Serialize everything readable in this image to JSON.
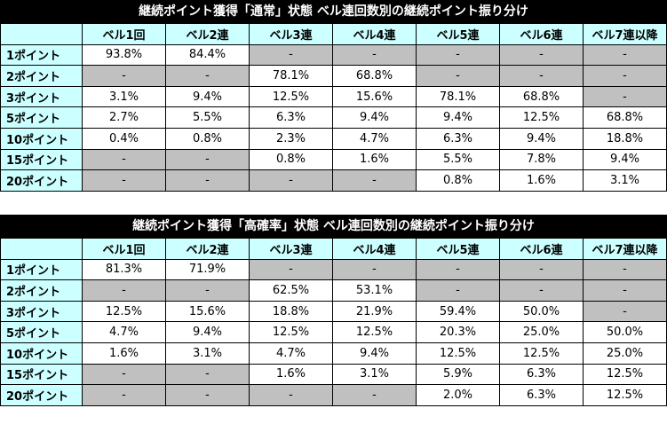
{
  "columns": [
    "ベル1回",
    "ベル2連",
    "ベル3連",
    "ベル4連",
    "ベル5連",
    "ベル6連",
    "ベル7連以降"
  ],
  "tables": [
    {
      "title": "継続ポイント獲得「通常」状態 ベル連回数別の継続ポイント振り分け",
      "rows": [
        {
          "label": "1ポイント",
          "cells": [
            {
              "v": "93.8%",
              "g": false
            },
            {
              "v": "84.4%",
              "g": false
            },
            {
              "v": "-",
              "g": true
            },
            {
              "v": "-",
              "g": true
            },
            {
              "v": "-",
              "g": true
            },
            {
              "v": "-",
              "g": true
            },
            {
              "v": "-",
              "g": true
            }
          ]
        },
        {
          "label": "2ポイント",
          "cells": [
            {
              "v": "-",
              "g": true
            },
            {
              "v": "-",
              "g": true
            },
            {
              "v": "78.1%",
              "g": false
            },
            {
              "v": "68.8%",
              "g": false
            },
            {
              "v": "-",
              "g": true
            },
            {
              "v": "-",
              "g": true
            },
            {
              "v": "-",
              "g": true
            }
          ]
        },
        {
          "label": "3ポイント",
          "cells": [
            {
              "v": "3.1%",
              "g": false
            },
            {
              "v": "9.4%",
              "g": false
            },
            {
              "v": "12.5%",
              "g": false
            },
            {
              "v": "15.6%",
              "g": false
            },
            {
              "v": "78.1%",
              "g": false
            },
            {
              "v": "68.8%",
              "g": false
            },
            {
              "v": "-",
              "g": true
            }
          ]
        },
        {
          "label": "5ポイント",
          "cells": [
            {
              "v": "2.7%",
              "g": false
            },
            {
              "v": "5.5%",
              "g": false
            },
            {
              "v": "6.3%",
              "g": false
            },
            {
              "v": "9.4%",
              "g": false
            },
            {
              "v": "9.4%",
              "g": false
            },
            {
              "v": "12.5%",
              "g": false
            },
            {
              "v": "68.8%",
              "g": false
            }
          ]
        },
        {
          "label": "10ポイント",
          "cells": [
            {
              "v": "0.4%",
              "g": false
            },
            {
              "v": "0.8%",
              "g": false
            },
            {
              "v": "2.3%",
              "g": false
            },
            {
              "v": "4.7%",
              "g": false
            },
            {
              "v": "6.3%",
              "g": false
            },
            {
              "v": "9.4%",
              "g": false
            },
            {
              "v": "18.8%",
              "g": false
            }
          ]
        },
        {
          "label": "15ポイント",
          "cells": [
            {
              "v": "-",
              "g": true
            },
            {
              "v": "-",
              "g": true
            },
            {
              "v": "0.8%",
              "g": false
            },
            {
              "v": "1.6%",
              "g": false
            },
            {
              "v": "5.5%",
              "g": false
            },
            {
              "v": "7.8%",
              "g": false
            },
            {
              "v": "9.4%",
              "g": false
            }
          ]
        },
        {
          "label": "20ポイント",
          "cells": [
            {
              "v": "-",
              "g": true
            },
            {
              "v": "-",
              "g": true
            },
            {
              "v": "-",
              "g": true
            },
            {
              "v": "-",
              "g": true
            },
            {
              "v": "0.8%",
              "g": false
            },
            {
              "v": "1.6%",
              "g": false
            },
            {
              "v": "3.1%",
              "g": false
            }
          ]
        }
      ]
    },
    {
      "title": "継続ポイント獲得「高確率」状態 ベル連回数別の継続ポイント振り分け",
      "rows": [
        {
          "label": "1ポイント",
          "cells": [
            {
              "v": "81.3%",
              "g": false
            },
            {
              "v": "71.9%",
              "g": false
            },
            {
              "v": "-",
              "g": true
            },
            {
              "v": "-",
              "g": true
            },
            {
              "v": "-",
              "g": true
            },
            {
              "v": "-",
              "g": true
            },
            {
              "v": "-",
              "g": true
            }
          ]
        },
        {
          "label": "2ポイント",
          "cells": [
            {
              "v": "-",
              "g": true
            },
            {
              "v": "-",
              "g": true
            },
            {
              "v": "62.5%",
              "g": false
            },
            {
              "v": "53.1%",
              "g": false
            },
            {
              "v": "-",
              "g": true
            },
            {
              "v": "-",
              "g": true
            },
            {
              "v": "-",
              "g": true
            }
          ]
        },
        {
          "label": "3ポイント",
          "cells": [
            {
              "v": "12.5%",
              "g": false
            },
            {
              "v": "15.6%",
              "g": false
            },
            {
              "v": "18.8%",
              "g": false
            },
            {
              "v": "21.9%",
              "g": false
            },
            {
              "v": "59.4%",
              "g": false
            },
            {
              "v": "50.0%",
              "g": false
            },
            {
              "v": "-",
              "g": true
            }
          ]
        },
        {
          "label": "5ポイント",
          "cells": [
            {
              "v": "4.7%",
              "g": false
            },
            {
              "v": "9.4%",
              "g": false
            },
            {
              "v": "12.5%",
              "g": false
            },
            {
              "v": "12.5%",
              "g": false
            },
            {
              "v": "20.3%",
              "g": false
            },
            {
              "v": "25.0%",
              "g": false
            },
            {
              "v": "50.0%",
              "g": false
            }
          ]
        },
        {
          "label": "10ポイント",
          "cells": [
            {
              "v": "1.6%",
              "g": false
            },
            {
              "v": "3.1%",
              "g": false
            },
            {
              "v": "4.7%",
              "g": false
            },
            {
              "v": "9.4%",
              "g": false
            },
            {
              "v": "12.5%",
              "g": false
            },
            {
              "v": "12.5%",
              "g": false
            },
            {
              "v": "25.0%",
              "g": false
            }
          ]
        },
        {
          "label": "15ポイント",
          "cells": [
            {
              "v": "-",
              "g": true
            },
            {
              "v": "-",
              "g": true
            },
            {
              "v": "1.6%",
              "g": false
            },
            {
              "v": "3.1%",
              "g": false
            },
            {
              "v": "5.9%",
              "g": false
            },
            {
              "v": "6.3%",
              "g": false
            },
            {
              "v": "12.5%",
              "g": false
            }
          ]
        },
        {
          "label": "20ポイント",
          "cells": [
            {
              "v": "-",
              "g": true
            },
            {
              "v": "-",
              "g": true
            },
            {
              "v": "-",
              "g": true
            },
            {
              "v": "-",
              "g": true
            },
            {
              "v": "2.0%",
              "g": false
            },
            {
              "v": "6.3%",
              "g": false
            },
            {
              "v": "12.5%",
              "g": false
            }
          ]
        }
      ]
    }
  ]
}
